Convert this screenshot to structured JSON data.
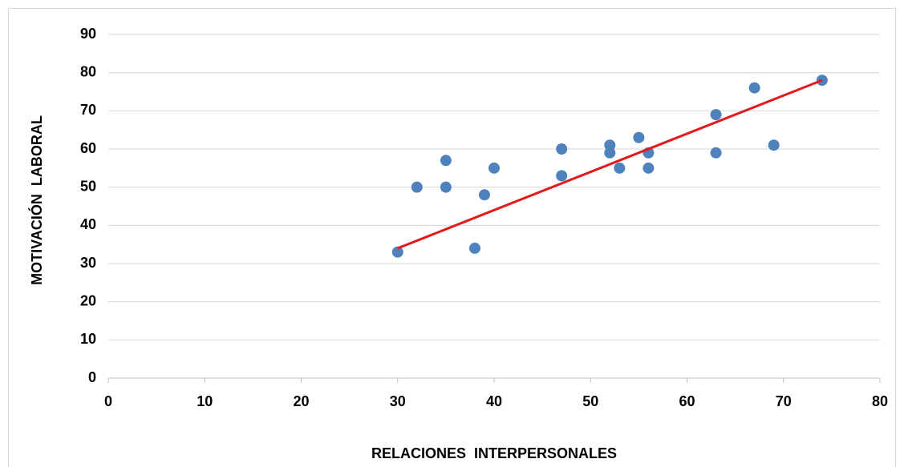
{
  "chart_data": {
    "type": "scatter",
    "x_label": "RELACIONES  INTERPERSONALES",
    "y_label": "MOTIVACIÓN  LABORAL",
    "series": [
      {
        "color": "#4f81bd",
        "x": [
          30,
          32,
          35,
          35,
          38,
          39,
          40,
          47,
          47,
          52,
          52,
          53,
          55,
          56,
          56,
          63,
          63,
          67,
          69,
          74
        ],
        "values": [
          33,
          50,
          57,
          50,
          34,
          48,
          55,
          60,
          53,
          61,
          59,
          55,
          63,
          59,
          55,
          69,
          59,
          76,
          61,
          78
        ]
      }
    ],
    "trendline": {
      "color": "#e31a1c",
      "x": [
        30,
        74
      ],
      "values": [
        34,
        78
      ]
    },
    "xlim": [
      0,
      80
    ],
    "xticks": [
      0,
      10,
      20,
      30,
      40,
      50,
      60,
      70,
      80
    ],
    "ylim": [
      0,
      90
    ],
    "yticks": [
      0,
      10,
      20,
      30,
      40,
      50,
      60,
      70,
      80,
      90
    ],
    "grid": true
  }
}
